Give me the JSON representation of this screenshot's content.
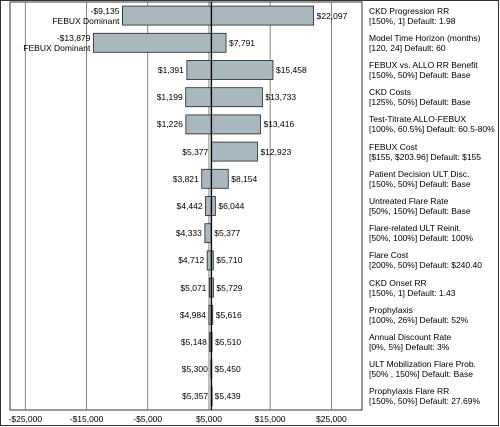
{
  "chart_data": {
    "type": "tornado",
    "categories": [
      "CKD Progression RR\n[150%, 1] Default: 1.98",
      "Model Time Horizon (months)\n[120, 24] Default: 60",
      "FEBUX vs. ALLO RR Benefit\n[150%, 50%] Default: Base",
      "CKD Costs\n[125%, 50%] Default: Base",
      "Test-Titrate ALLO-FEBUX\n[100%, 60.5%] Default: 60.5-80%",
      "FEBUX Cost\n[$155, $203.96] Default: $155",
      "Patient Decision ULT Disc.\n[150%, 50%] Default: Base",
      "Untreated Flare Rate\n[50%, 150%] Default: Base",
      "Flare-related ULT Reinit.\n[50%, 100%] Default: 100%",
      "Flare Cost\n[200%, 50%] Default: $240.40",
      "CKD Onset RR\n[150%, 1] Default: 1.43",
      "Prophylaxis\n[100%, 26%] Default: 52%",
      "Annual Discount Rate\n[0%, 5%] Default: 3%",
      "ULT Mobilization Flare Prob.\n[50% , 150%] Default: Base",
      "Prophylaxis Flare RR\n[150%, 50%] Default: 27.69%"
    ],
    "series": [
      {
        "color": "#a9b8bf",
        "values": [
          -9135,
          -13879,
          1391,
          1199,
          1226,
          5377,
          3821,
          4442,
          4333,
          4712,
          5071,
          4984,
          5148,
          5300,
          5357
        ],
        "value_labels": [
          "-$9,135\nFEBUX Dominant",
          "-$13,879\nFEBUX Dominant",
          "$1,391",
          "$1,199",
          "$1,226",
          "$5,377",
          "$3,821",
          "$4,442",
          "$4,333",
          "$4,712",
          "$5,071",
          "$4,984",
          "$5,148",
          "$5,300",
          "$5,357"
        ]
      },
      {
        "color": "#a9b8bf",
        "values": [
          22097,
          7791,
          15458,
          13733,
          13416,
          12923,
          8154,
          6044,
          5377,
          5710,
          5729,
          5616,
          5510,
          5450,
          5439
        ],
        "value_labels": [
          "$22,097",
          "$7,791",
          "$15,458",
          "$13,733",
          "$13,416",
          "$12,923",
          "$8,154",
          "$6,044",
          "$5,377",
          "$5,710",
          "$5,729",
          "$5,616",
          "$5,510",
          "$5,450",
          "$5,439"
        ]
      }
    ],
    "reference_line": 5400,
    "xlim": [
      -27500,
      30000
    ],
    "xticks": [
      {
        "value": -25000,
        "label": "-$25,000"
      },
      {
        "value": -15000,
        "label": "-$15,000"
      },
      {
        "value": -5000,
        "label": "-$5,000"
      },
      {
        "value": 5000,
        "label": "$5,000"
      },
      {
        "value": 15000,
        "label": "$15,000"
      },
      {
        "value": 25000,
        "label": "$25,000"
      }
    ],
    "grid": true
  }
}
